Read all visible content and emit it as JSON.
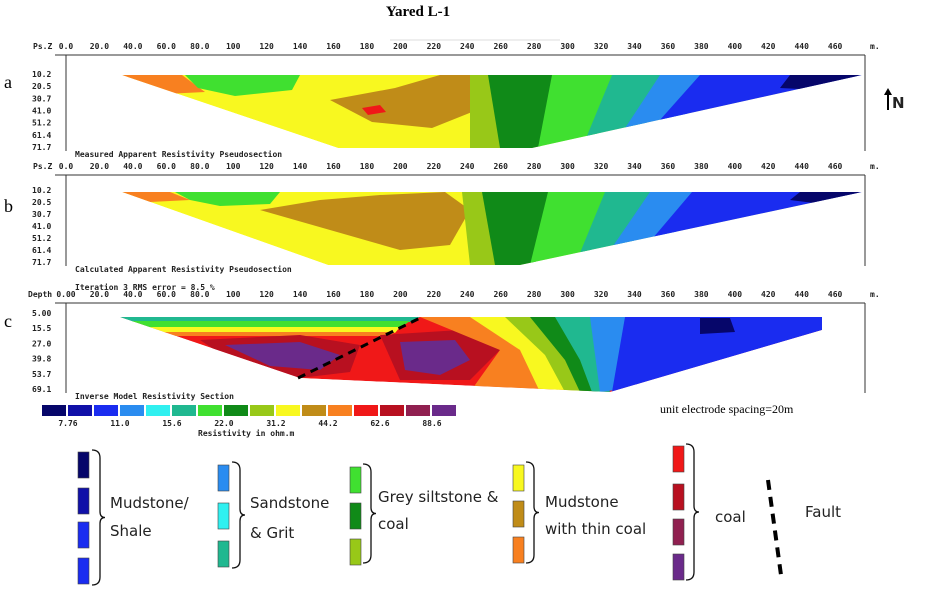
{
  "title": "Yared L-1",
  "north": "N",
  "panels": [
    {
      "letter": "a",
      "axis_label": "Ps.Z",
      "x_ticks": [
        "0.0",
        "20.0",
        "40.0",
        "60.0",
        "80.0",
        "100",
        "120",
        "140",
        "160",
        "180",
        "200",
        "220",
        "240",
        "260",
        "280",
        "300",
        "320",
        "340",
        "360",
        "380",
        "400",
        "420",
        "440",
        "460"
      ],
      "unit": "m.",
      "depths": [
        "10.2",
        "20.5",
        "30.7",
        "41.0",
        "51.2",
        "61.4",
        "71.7"
      ],
      "caption": "Measured Apparent Resistivity Pseudosection"
    },
    {
      "letter": "b",
      "axis_label": "Ps.Z",
      "x_ticks": [
        "0.0",
        "20.0",
        "40.0",
        "60.0",
        "80.0",
        "100",
        "120",
        "140",
        "160",
        "180",
        "200",
        "220",
        "240",
        "260",
        "280",
        "300",
        "320",
        "340",
        "360",
        "380",
        "400",
        "420",
        "440",
        "460"
      ],
      "unit": "m.",
      "depths": [
        "10.2",
        "20.5",
        "30.7",
        "41.0",
        "51.2",
        "61.4",
        "71.7"
      ],
      "caption": "Calculated Apparent Resistivity Pseudosection"
    },
    {
      "letter": "c",
      "axis_label": "Depth",
      "header": "Iteration 3 RMS error = 8.5 %",
      "x_ticks": [
        "0.00",
        "20.0",
        "40.0",
        "60.0",
        "80.0",
        "100",
        "120",
        "140",
        "160",
        "180",
        "200",
        "220",
        "240",
        "260",
        "280",
        "300",
        "320",
        "340",
        "360",
        "380",
        "400",
        "420",
        "440",
        "460"
      ],
      "unit": "m.",
      "depths": [
        "5.00",
        "15.5",
        "27.0",
        "39.8",
        "53.7",
        "69.1"
      ],
      "caption": "Inverse Model Resistivity Section"
    }
  ],
  "scale": {
    "labels": [
      "7.76",
      "11.0",
      "15.6",
      "22.0",
      "31.2",
      "44.2",
      "62.6",
      "88.6"
    ],
    "title": "Resistivity in ohm.m"
  },
  "note": "unit electrode spacing=20m",
  "legend": [
    {
      "lines": [
        "Mudstone/",
        "Shale"
      ]
    },
    {
      "lines": [
        "Sandstone",
        "& Grit"
      ]
    },
    {
      "lines": [
        "Grey siltstone &",
        "coal"
      ]
    },
    {
      "lines": [
        "Mudstone",
        "with thin coal"
      ]
    },
    {
      "lines": [
        "coal"
      ]
    },
    {
      "lines": [
        "Fault"
      ]
    }
  ]
}
